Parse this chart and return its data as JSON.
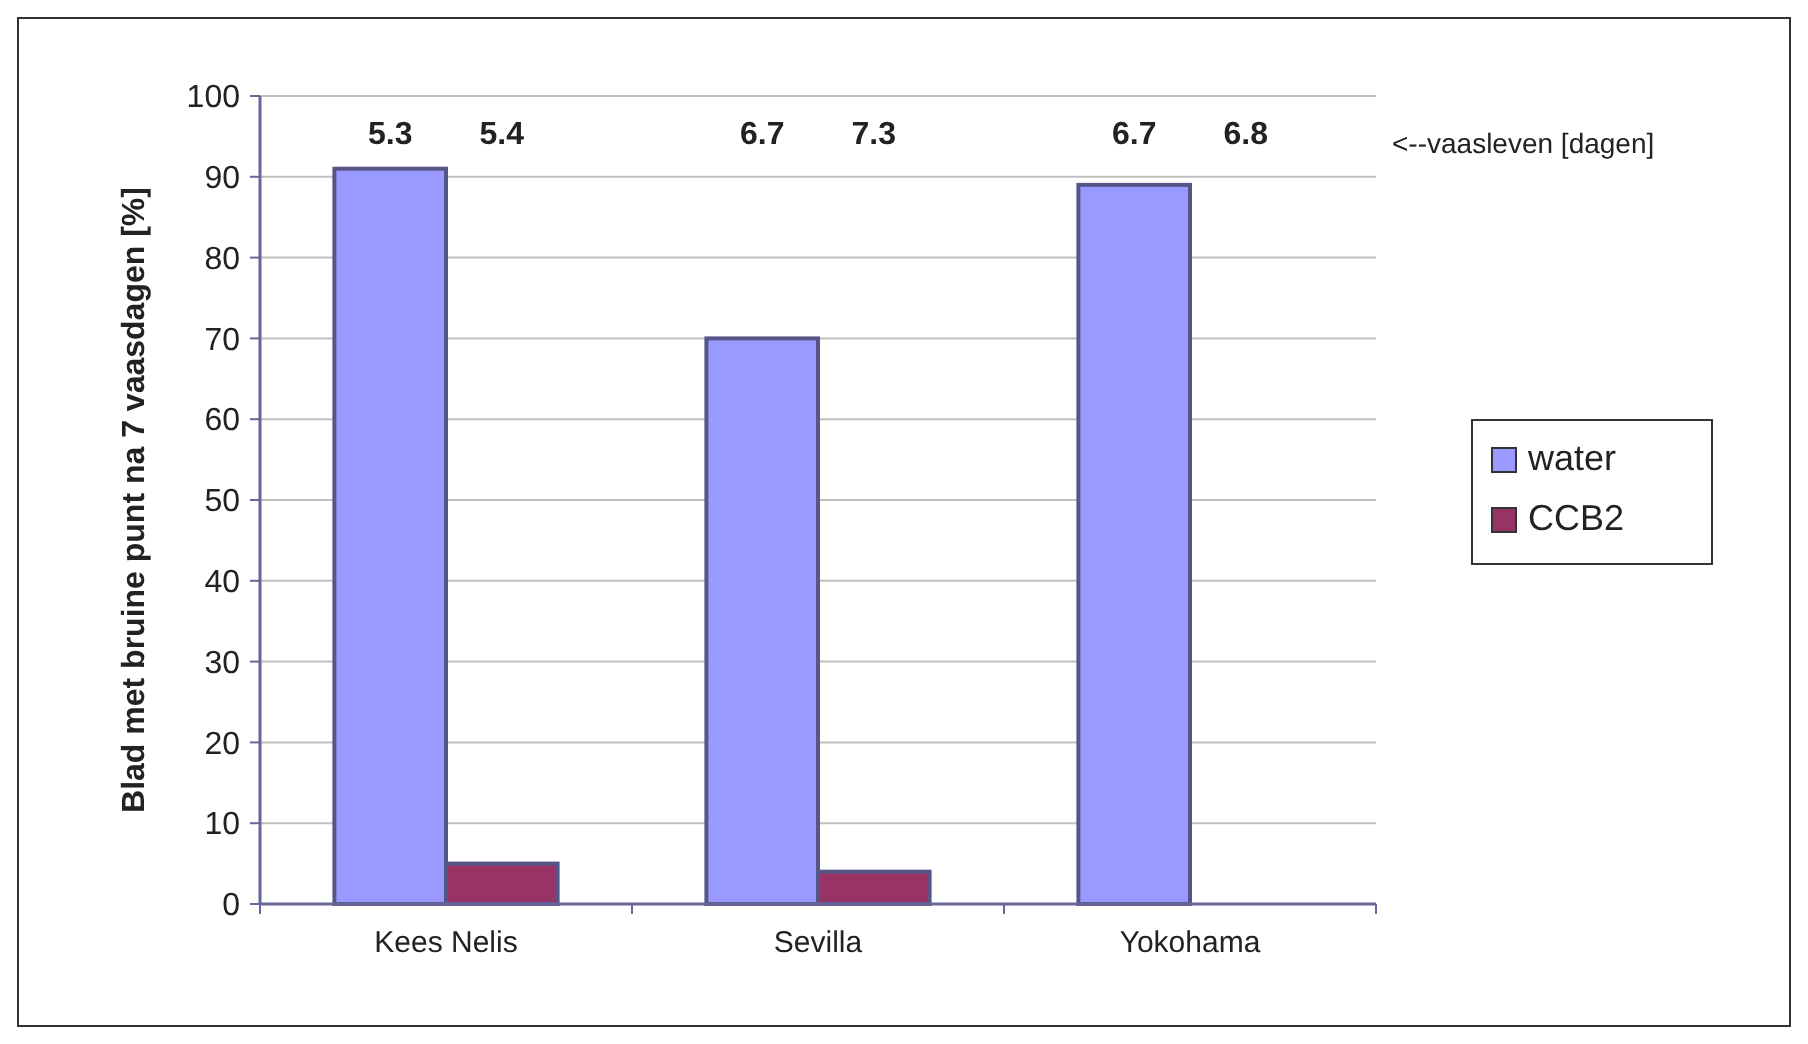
{
  "chart_data": {
    "type": "bar",
    "ylabel": "Blad met bruine punt na 7 vaasdagen [%]",
    "categories": [
      "Kees Nelis",
      "Sevilla",
      "Yokohama"
    ],
    "series": [
      {
        "name": "water",
        "color": "#9999ff",
        "values": [
          91,
          70,
          89
        ]
      },
      {
        "name": "CCB2",
        "color": "#993366",
        "values": [
          5,
          4,
          0
        ]
      }
    ],
    "annotations": [
      "5.3",
      "5.4",
      "6.7",
      "7.3",
      "6.7",
      "6.8",
      "<--vaasleven [dagen]"
    ],
    "ylim": [
      0,
      100
    ],
    "yticks": [
      0,
      10,
      20,
      30,
      40,
      50,
      60,
      70,
      80,
      90,
      100
    ],
    "grid": "y",
    "legend": "right"
  }
}
